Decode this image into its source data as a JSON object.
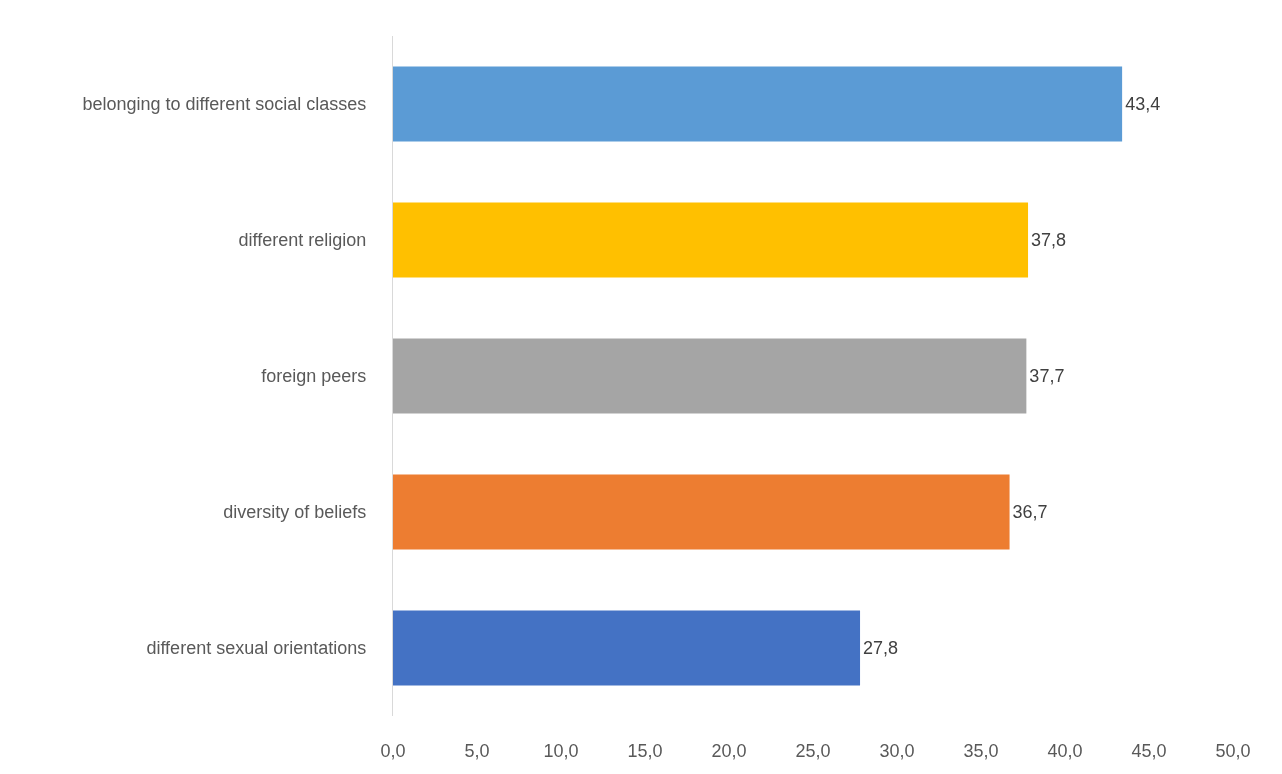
{
  "chart_data": {
    "type": "bar",
    "orientation": "horizontal",
    "categories": [
      "belonging to different social classes",
      "different religion",
      "foreign peers",
      "diversity of beliefs",
      "different sexual orientations"
    ],
    "values": [
      43.4,
      37.8,
      37.7,
      36.7,
      27.8
    ],
    "colors": [
      "#5b9bd5",
      "#ffc000",
      "#a5a5a5",
      "#ed7d31",
      "#4472c4"
    ],
    "value_labels": [
      "43,4",
      "37,8",
      "37,7",
      "36,7",
      "27,8"
    ],
    "xlim": [
      0,
      50
    ],
    "xticks": [
      {
        "value": 0,
        "label": "0,0"
      },
      {
        "value": 5,
        "label": "5,0"
      },
      {
        "value": 10,
        "label": "10,0"
      },
      {
        "value": 15,
        "label": "15,0"
      },
      {
        "value": 20,
        "label": "20,0"
      },
      {
        "value": 25,
        "label": "25,0"
      },
      {
        "value": 30,
        "label": "30,0"
      },
      {
        "value": 35,
        "label": "35,0"
      },
      {
        "value": 40,
        "label": "40,0"
      },
      {
        "value": 45,
        "label": "45,0"
      },
      {
        "value": 50,
        "label": "50,0"
      }
    ],
    "grid": false
  }
}
